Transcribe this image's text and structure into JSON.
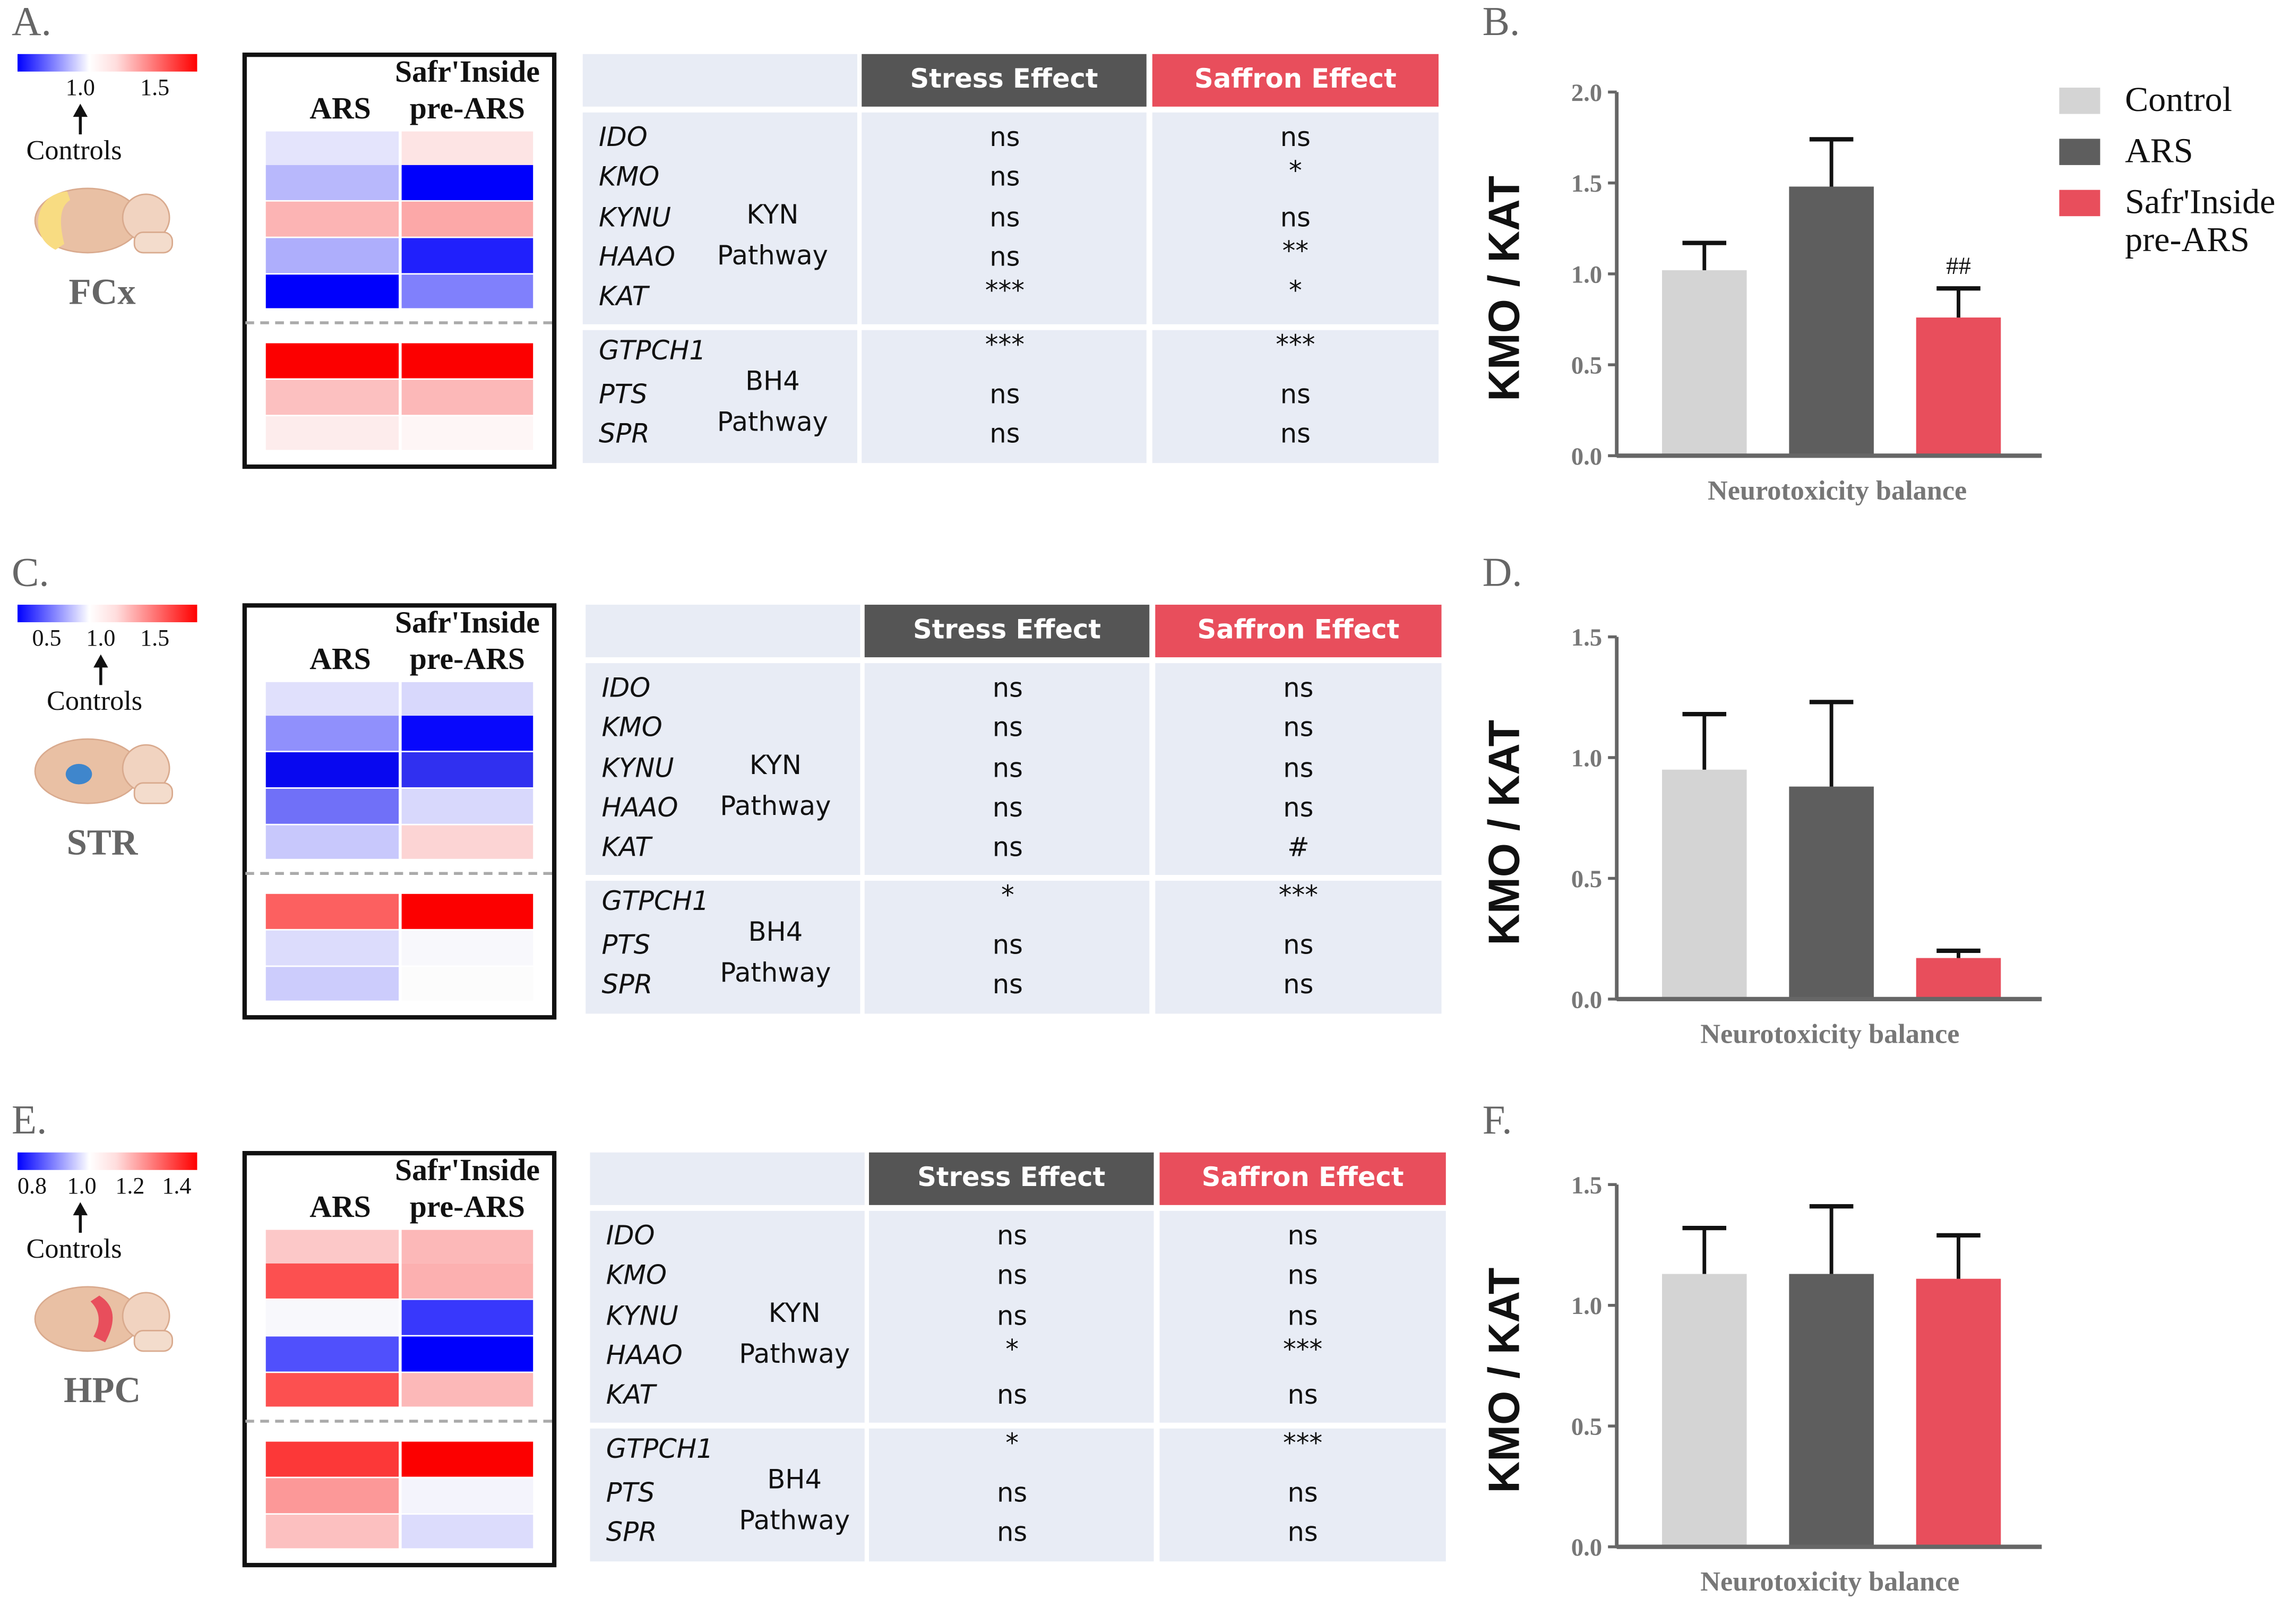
{
  "legend": {
    "items": [
      {
        "label": "Control",
        "color": "#d4d4d4"
      },
      {
        "label": "ARS",
        "color": "#5e5e5e"
      },
      {
        "label": "Safr'Inside pre-ARS",
        "color": "#e84e5c"
      }
    ]
  },
  "heatmap_headers": {
    "ars": "ARS",
    "saffron_line1": "Safr'Inside",
    "saffron_line2": "pre-ARS"
  },
  "table_headers": {
    "stress": "Stress Effect",
    "saffron": "Saffron Effect",
    "stress_color": "#555555",
    "saffron_color": "#e84e5c"
  },
  "pathways": {
    "kyn": [
      "KYN",
      "Pathway"
    ],
    "bh4": [
      "BH4",
      "Pathway"
    ]
  },
  "panels": [
    {
      "letter": "A.",
      "region": "FCx",
      "region_color": "#f8dc82",
      "colorbar_ticks": [
        "1.0",
        "1.5"
      ],
      "controls_label": "Controls",
      "genes": [
        "IDO",
        "KMO",
        "KYNU",
        "HAAO",
        "KAT",
        "GTPCH1",
        "PTS",
        "SPR"
      ],
      "heat_ars": [
        "#e4e4fc",
        "#b8b8fc",
        "#fcb4b4",
        "#aeaefc",
        "#0000fc",
        "#fc0000",
        "#fcc0c0",
        "#fdecec"
      ],
      "heat_saffron": [
        "#fde4e4",
        "#0000fc",
        "#fca8a8",
        "#2020fc",
        "#8080fc",
        "#fc0000",
        "#fcb8b8",
        "#fef6f6"
      ],
      "stress": [
        "ns",
        "ns",
        "ns",
        "ns",
        "***",
        "***",
        "ns",
        "ns"
      ],
      "saffron": [
        "ns",
        "*",
        "ns",
        "**",
        "*",
        "***",
        "ns",
        "ns"
      ]
    },
    {
      "letter": "C.",
      "region": "STR",
      "region_color": "#3f86cc",
      "colorbar_ticks": [
        "0.5",
        "1.0",
        "1.5"
      ],
      "controls_label": "Controls",
      "genes": [
        "IDO",
        "KMO",
        "KYNU",
        "HAAO",
        "KAT",
        "GTPCH1",
        "PTS",
        "SPR"
      ],
      "heat_ars": [
        "#e0e0fc",
        "#9090fc",
        "#0808f0",
        "#7070f8",
        "#c8c8fc",
        "#fc6060",
        "#dcdcfc",
        "#ccccfc"
      ],
      "heat_saffron": [
        "#d8d8fc",
        "#0808fc",
        "#3030f0",
        "#d8d8fc",
        "#fcd4d4",
        "#fc0000",
        "#f8f8fc",
        "#fcfcfc"
      ],
      "stress": [
        "ns",
        "ns",
        "ns",
        "ns",
        "ns",
        "*",
        "ns",
        "ns"
      ],
      "saffron": [
        "ns",
        "ns",
        "ns",
        "ns",
        "#",
        "***",
        "ns",
        "ns"
      ]
    },
    {
      "letter": "E.",
      "region": "HPC",
      "region_color": "#e84e5c",
      "colorbar_ticks": [
        "0.8",
        "1.0",
        "1.2",
        "1.4"
      ],
      "controls_label": "Controls",
      "genes": [
        "IDO",
        "KMO",
        "KYNU",
        "HAAO",
        "KAT",
        "GTPCH1",
        "PTS",
        "SPR"
      ],
      "heat_ars": [
        "#fcc8c8",
        "#fc5050",
        "#f8f8fc",
        "#5050fc",
        "#fc5050",
        "#fc3838",
        "#fc9898",
        "#fcc0c0"
      ],
      "heat_saffron": [
        "#fcb8b8",
        "#fcb0b0",
        "#3838fc",
        "#0000fc",
        "#fcb8b8",
        "#fc0000",
        "#f4f4fc",
        "#dcdcfc"
      ],
      "stress": [
        "ns",
        "ns",
        "ns",
        "*",
        "ns",
        "*",
        "ns",
        "ns"
      ],
      "saffron": [
        "ns",
        "ns",
        "ns",
        "***",
        "ns",
        "***",
        "ns",
        "ns"
      ]
    }
  ],
  "chart_data": [
    {
      "panel": "B.",
      "type": "bar",
      "title": "",
      "xlabel": "Neurotoxicity balance",
      "ylabel": "KMO / KAT",
      "ylim": [
        0,
        2.0
      ],
      "yticks": [
        "0.0",
        "0.5",
        "1.0",
        "1.5",
        "2.0"
      ],
      "ytick_values": [
        0,
        0.5,
        1.0,
        1.5,
        2.0
      ],
      "categories": [
        "Control",
        "ARS",
        "Safr'Inside pre-ARS"
      ],
      "values": [
        1.02,
        1.48,
        0.76
      ],
      "error_top": [
        1.17,
        1.74,
        0.92
      ],
      "annotations": [
        "",
        "",
        "##"
      ],
      "legend": "top-right"
    },
    {
      "panel": "D.",
      "type": "bar",
      "title": "",
      "xlabel": "Neurotoxicity balance",
      "ylabel": "KMO / KAT",
      "ylim": [
        0,
        1.5
      ],
      "yticks": [
        "0.0",
        "0.5",
        "1.0",
        "1.5"
      ],
      "ytick_values": [
        0,
        0.5,
        1.0,
        1.5
      ],
      "categories": [
        "Control",
        "ARS",
        "Safr'Inside pre-ARS"
      ],
      "values": [
        0.95,
        0.88,
        0.17
      ],
      "error_top": [
        1.18,
        1.23,
        0.2
      ],
      "annotations": [
        "",
        "",
        ""
      ]
    },
    {
      "panel": "F.",
      "type": "bar",
      "title": "",
      "xlabel": "Neurotoxicity balance",
      "ylabel": "KMO / KAT",
      "ylim": [
        0,
        1.5
      ],
      "yticks": [
        "0.0",
        "0.5",
        "1.0",
        "1.5"
      ],
      "ytick_values": [
        0,
        0.5,
        1.0,
        1.5
      ],
      "categories": [
        "Control",
        "ARS",
        "Safr'Inside pre-ARS"
      ],
      "values": [
        1.13,
        1.13,
        1.11
      ],
      "error_top": [
        1.32,
        1.41,
        1.29
      ],
      "annotations": [
        "",
        "",
        ""
      ]
    }
  ]
}
